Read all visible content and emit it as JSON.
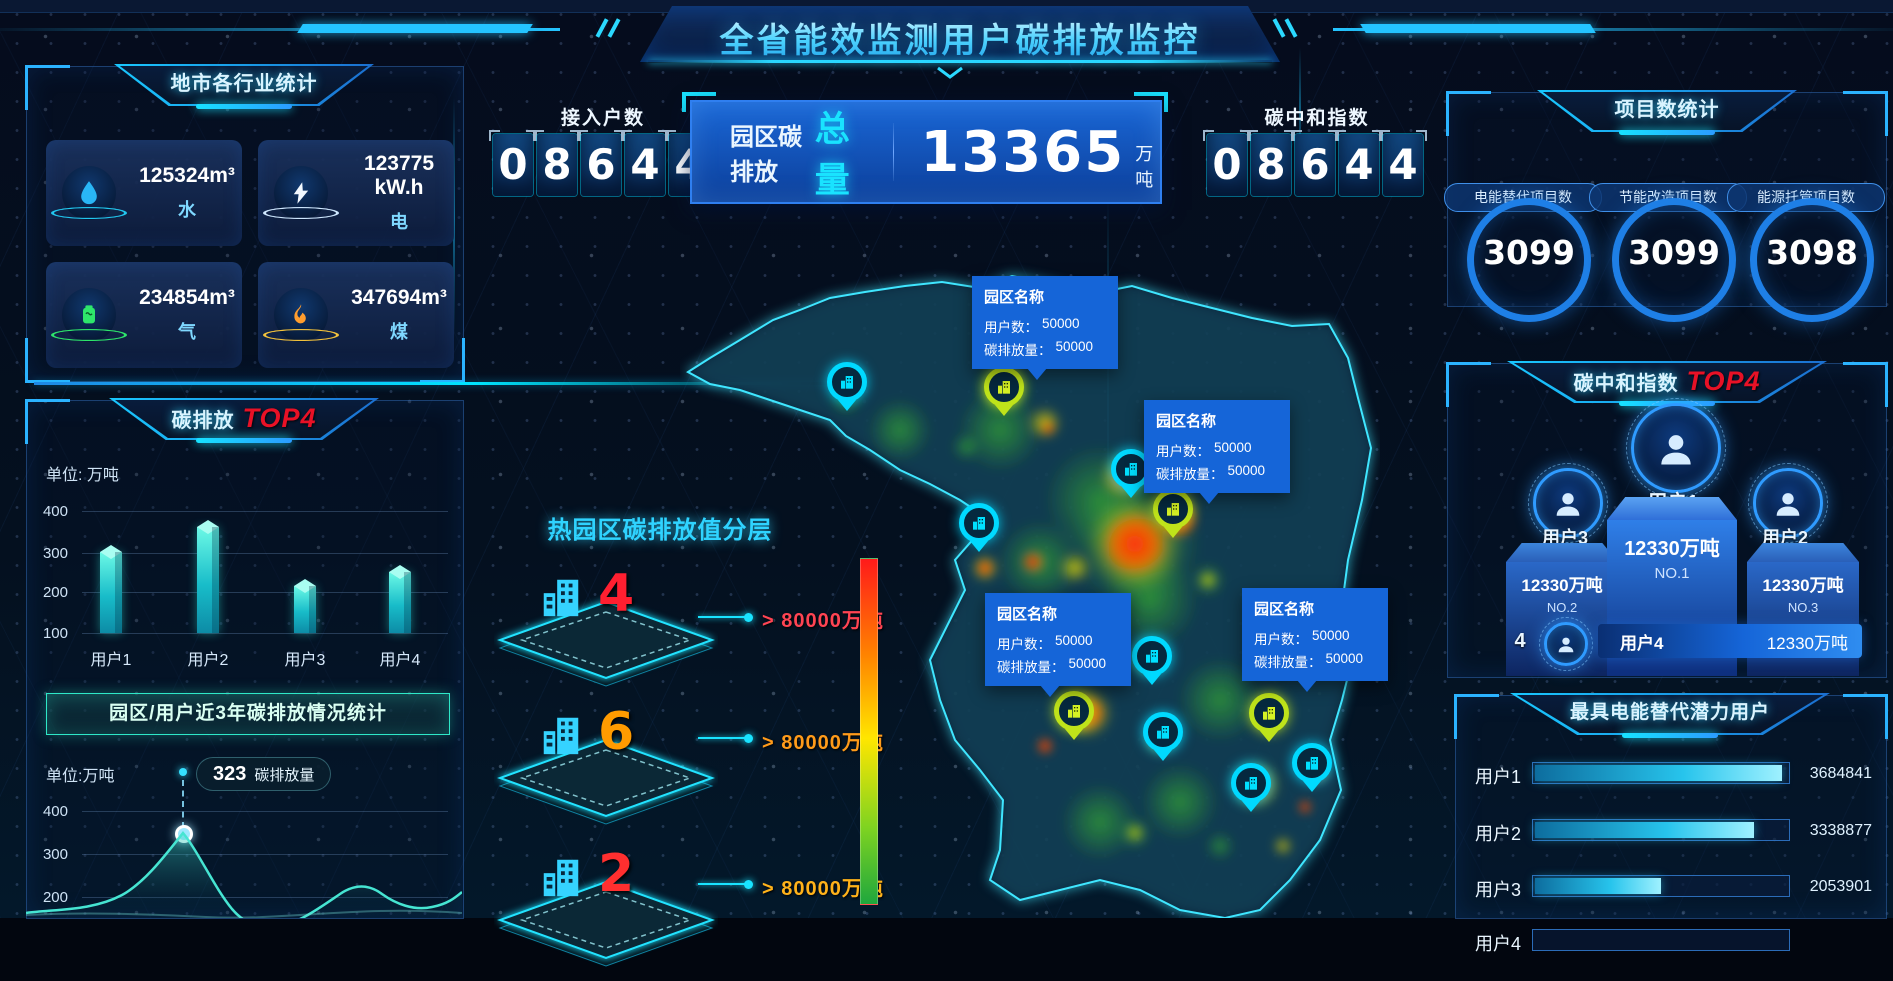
{
  "header": {
    "title": "全省能效监测用户碳排放监控"
  },
  "top_stats": {
    "access_users": {
      "label": "接入户数",
      "digits": [
        "0",
        "8",
        "6",
        "4",
        "4"
      ]
    },
    "total": {
      "prefix": "园区碳排放",
      "highlight": "总量",
      "value": "13365",
      "unit": "万吨"
    },
    "neutral_index": {
      "label": "碳中和指数",
      "digits": [
        "0",
        "8",
        "6",
        "4",
        "4"
      ]
    }
  },
  "industry_panel": {
    "title": "地市各行业统计",
    "cards": [
      {
        "icon": "water-drop-icon",
        "value": "125324m³",
        "label": "水"
      },
      {
        "icon": "lightning-icon",
        "value": "123775 kW.h",
        "label": "电"
      },
      {
        "icon": "gas-tank-icon",
        "value": "234854m³",
        "label": "气"
      },
      {
        "icon": "flame-icon",
        "value": "347694m³",
        "label": "煤"
      }
    ]
  },
  "projects_panel": {
    "title": "项目数统计",
    "items": [
      {
        "label": "电能替代项目数",
        "value": "3099"
      },
      {
        "label": "节能改造项目数",
        "value": "3099"
      },
      {
        "label": "能源托管项目数",
        "value": "3098"
      }
    ]
  },
  "emission_top4": {
    "title": "碳排放",
    "badge": "TOP4",
    "unit_label": "单位: 万吨"
  },
  "history_button": {
    "label": "园区/用户近3年碳排放情况统计"
  },
  "trend": {
    "unit_label": "单位:万吨",
    "tooltip_value": "323",
    "tooltip_label": "碳排放量"
  },
  "heat_layers": {
    "title": "热园区碳排放值分层",
    "layers": [
      {
        "count": "4",
        "threshold": "> 80000万吨"
      },
      {
        "count": "6",
        "threshold": "> 80000万吨"
      },
      {
        "count": "2",
        "threshold": "> 80000万吨"
      }
    ]
  },
  "map": {
    "tooltip": {
      "title": "园区名称",
      "rows": [
        {
          "label": "用户数：",
          "value": "50000"
        },
        {
          "label": "碳排放量：",
          "value": "50000"
        }
      ]
    }
  },
  "neutral_top4": {
    "title": "碳中和指数",
    "badge": "TOP4",
    "first": {
      "user": "用户1",
      "value": "12330万吨",
      "rank": "NO.1"
    },
    "second": {
      "user": "用户3",
      "value": "12330万吨",
      "rank": "NO.2"
    },
    "third": {
      "user": "用户2",
      "value": "12330万吨",
      "rank": "NO.3"
    },
    "fourth": {
      "index": "4",
      "user": "用户4",
      "value": "12330万吨"
    }
  },
  "potential_panel": {
    "title": "最具电能替代潜力用户",
    "rows": [
      {
        "label": "用户1",
        "value": "3684841",
        "fill": 98
      },
      {
        "label": "用户2",
        "value": "3338877",
        "fill": 87
      },
      {
        "label": "用户3",
        "value": "2053901",
        "fill": 50
      },
      {
        "label": "用户4",
        "value": "",
        "fill": 0
      }
    ]
  },
  "colors": {
    "accent": "#19e3ff",
    "panel_border": "#2f68b2",
    "alert_red": "#ff2231",
    "orange": "#ff9b00",
    "bar_teal": "#2fe3d6",
    "tooltip_blue": "#1565d8",
    "podium_blue": "#1e6be0"
  },
  "chart_data": [
    {
      "type": "bar",
      "title": "碳排放 TOP4",
      "ylabel": "万吨",
      "categories": [
        "用户1",
        "用户2",
        "用户3",
        "用户4"
      ],
      "values": [
        300,
        360,
        215,
        250
      ],
      "ylim": [
        100,
        400
      ],
      "yticks": [
        100,
        200,
        300,
        400
      ],
      "grid": true,
      "legend": false
    },
    {
      "type": "area",
      "title": "园区/用户近3年碳排放情况统计",
      "ylabel": "万吨",
      "yticks": [
        200,
        300,
        400
      ],
      "highlight_point": {
        "value": 323,
        "label": "碳排放量"
      },
      "values": [
        110,
        340,
        155,
        150,
        225,
        200
      ],
      "note": "lower part of curve cut off by viewport"
    },
    {
      "type": "bar",
      "title": "最具电能替代潜力用户",
      "orientation": "horizontal",
      "categories": [
        "用户1",
        "用户2",
        "用户3"
      ],
      "values": [
        3684841,
        3338877,
        2053901
      ]
    }
  ]
}
